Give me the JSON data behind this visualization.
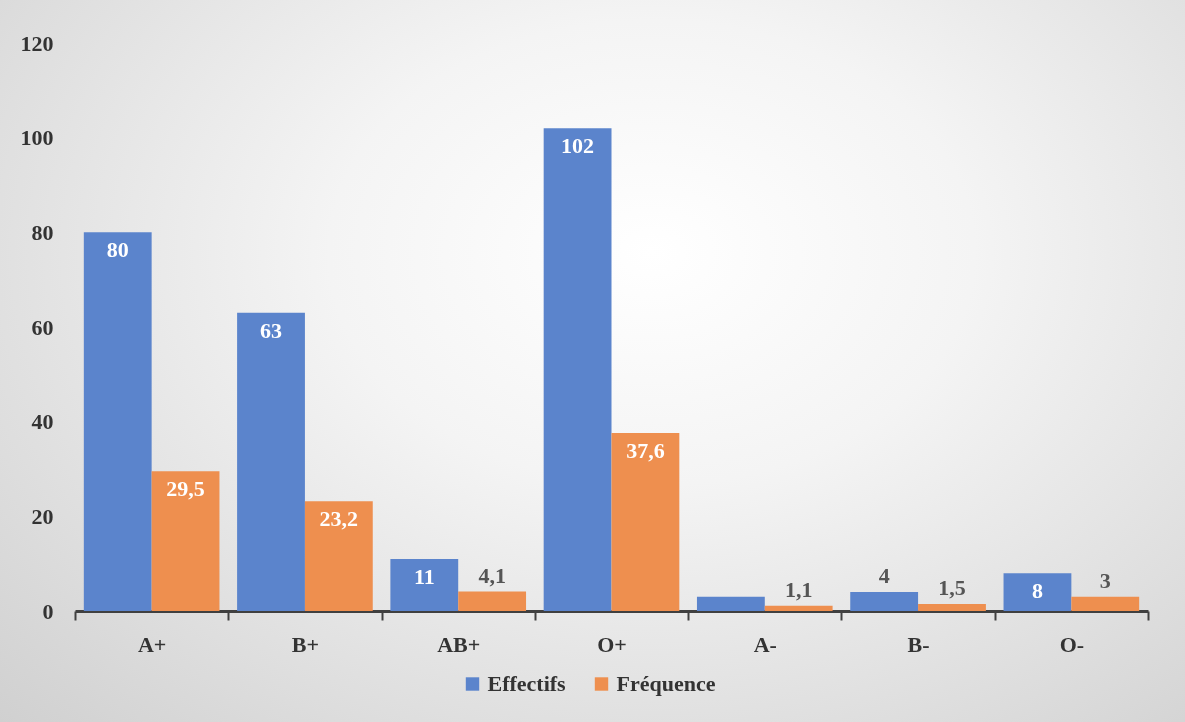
{
  "chart_data": {
    "type": "bar",
    "categories": [
      "A+",
      "B+",
      "AB+",
      "O+",
      "A-",
      "B-",
      "O-"
    ],
    "series": [
      {
        "name": "Effectifs",
        "color": "#5b84cc",
        "values": [
          80,
          63,
          11,
          102,
          3,
          4,
          8
        ],
        "value_labels": [
          "80",
          "63",
          "11",
          "102",
          null,
          "4",
          "8"
        ]
      },
      {
        "name": "Fréquence",
        "color": "#ee8f4f",
        "values": [
          29.5,
          23.2,
          4.1,
          37.6,
          1.1,
          1.5,
          3
        ],
        "value_labels": [
          "29,5",
          "23,2",
          "4,1",
          "37,6",
          "1,1",
          "1,5",
          "3"
        ]
      }
    ],
    "ylim": [
      0,
      120
    ],
    "yticks": [
      0,
      20,
      40,
      60,
      80,
      100,
      120
    ],
    "grid": false,
    "legend": "bottom"
  }
}
